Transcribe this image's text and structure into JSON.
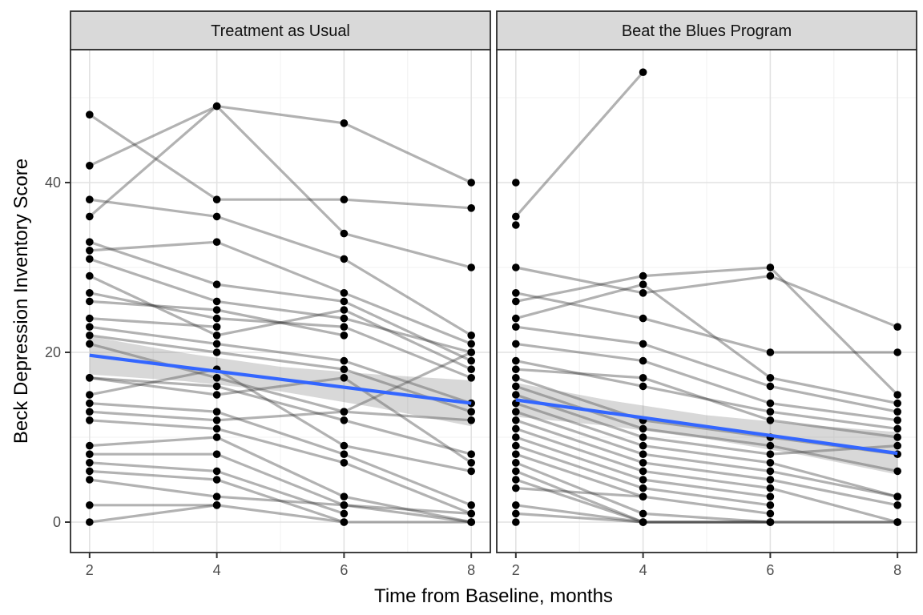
{
  "chart_data": {
    "type": "line",
    "title": "",
    "xlabel": "Time from Baseline, months",
    "ylabel": "Beck Depression Inventory Score",
    "x_ticks": [
      2,
      4,
      6,
      8
    ],
    "y_ticks": [
      0,
      20,
      40
    ],
    "xlim": [
      1.7,
      8.3
    ],
    "ylim": [
      -3.6,
      55.7
    ],
    "grid": "major and minor, light gray on white (theme_bw)",
    "legend_position": "none",
    "point_color": "#000000",
    "trajectory_color": "rgba(35,35,35,0.35)",
    "smooth_color": "#3366FF",
    "ribbon_color": "rgba(115,115,115,0.28)",
    "strip_fill": "#D9D9D9",
    "strip_border": "#2b2b2b",
    "panel_border": "#2b2b2b",
    "grid_major_color": "#E2E2E2",
    "grid_minor_color": "#F0F0F0",
    "tick_label_color": "#4d4d4d",
    "axis_title_color": "#000000",
    "facets": [
      {
        "label": "Treatment as Usual",
        "months": [
          2,
          4,
          6,
          8
        ],
        "subjects": [
          [
            48,
            38,
            38,
            37
          ],
          [
            42,
            49,
            47,
            40
          ],
          [
            36,
            49,
            34,
            30
          ],
          [
            38,
            36,
            31,
            22
          ],
          [
            33,
            28,
            26,
            19
          ],
          [
            32,
            33,
            27,
            21
          ],
          [
            31,
            26,
            24,
            20
          ],
          [
            29,
            22,
            25,
            18
          ],
          [
            27,
            24,
            23,
            17
          ],
          [
            26,
            25,
            22,
            null
          ],
          [
            24,
            23,
            null,
            null
          ],
          [
            23,
            21,
            19,
            14
          ],
          [
            22,
            20,
            18,
            13
          ],
          [
            21,
            17,
            13,
            12
          ],
          [
            17,
            16,
            12,
            8
          ],
          [
            17,
            15,
            17,
            7
          ],
          [
            15,
            18,
            9,
            6
          ],
          [
            14,
            13,
            8,
            2
          ],
          [
            13,
            12,
            13,
            20
          ],
          [
            12,
            11,
            7,
            1
          ],
          [
            9,
            10,
            3,
            0
          ],
          [
            8,
            8,
            2,
            0
          ],
          [
            7,
            6,
            1,
            null
          ],
          [
            6,
            5,
            0,
            null
          ],
          [
            5,
            3,
            2,
            1
          ],
          [
            2,
            2,
            null,
            null
          ],
          [
            0,
            2,
            0,
            0
          ]
        ],
        "smooth": {
          "x": [
            2,
            8
          ],
          "y": [
            19.65,
            14.0
          ]
        },
        "ribbon": {
          "x": [
            2,
            3.5,
            5,
            6.5,
            8
          ],
          "upper": [
            21.9,
            19.9,
            18.3,
            17.4,
            16.7
          ],
          "lower": [
            17.4,
            16.6,
            15.4,
            13.5,
            11.3
          ]
        }
      },
      {
        "label": "Beat the Blues Program",
        "months": [
          2,
          4,
          6,
          8
        ],
        "subjects": [
          [
            40,
            null,
            null,
            null
          ],
          [
            36,
            53,
            null,
            null
          ],
          [
            35,
            null,
            null,
            null
          ],
          [
            26,
            29,
            30,
            15
          ],
          [
            30,
            27,
            29,
            23
          ],
          [
            27,
            24,
            20,
            20
          ],
          [
            24,
            28,
            17,
            14
          ],
          [
            23,
            21,
            16,
            13
          ],
          [
            21,
            19,
            14,
            12
          ],
          [
            19,
            16,
            13,
            11
          ],
          [
            18,
            17,
            12,
            10
          ],
          [
            17,
            12,
            10,
            8
          ],
          [
            16,
            11,
            9,
            6
          ],
          [
            15,
            10,
            8,
            9
          ],
          [
            14,
            9,
            7,
            3
          ],
          [
            13,
            8,
            6,
            3
          ],
          [
            12,
            7,
            5,
            2
          ],
          [
            11,
            6,
            4,
            0
          ],
          [
            10,
            5,
            3,
            null
          ],
          [
            9,
            4,
            2,
            null
          ],
          [
            8,
            3,
            1,
            null
          ],
          [
            7,
            1,
            0,
            0
          ],
          [
            6,
            0,
            0,
            0
          ],
          [
            5,
            0,
            0,
            null
          ],
          [
            4,
            3,
            null,
            null
          ],
          [
            2,
            0,
            null,
            null
          ],
          [
            1,
            0,
            0,
            null
          ],
          [
            0,
            null,
            null,
            null
          ]
        ],
        "smooth": {
          "x": [
            2,
            8
          ],
          "y": [
            14.4,
            8.1
          ]
        },
        "ribbon": {
          "x": [
            2,
            3.5,
            5,
            6.5,
            8
          ],
          "upper": [
            16.4,
            14.3,
            12.6,
            11.5,
            10.6
          ],
          "lower": [
            12.4,
            11.3,
            9.8,
            7.9,
            5.6
          ]
        }
      }
    ]
  }
}
